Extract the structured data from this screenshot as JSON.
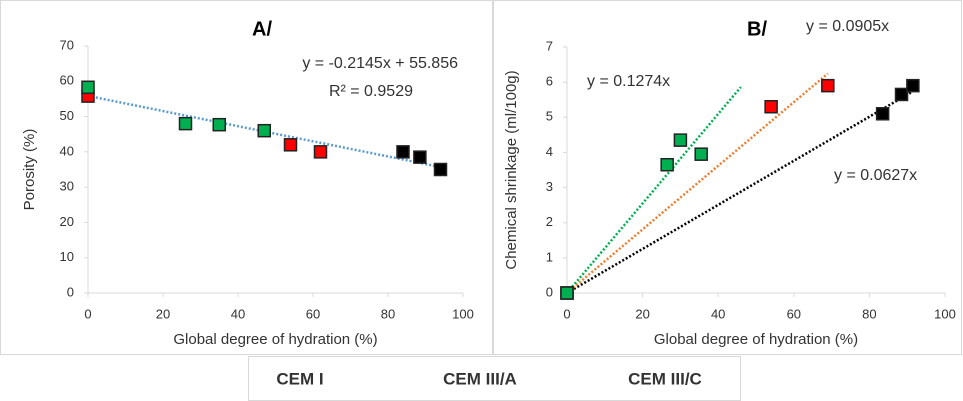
{
  "chart_data": [
    {
      "type": "scatter",
      "title": "A/",
      "x_label": "Global degree of hydration (%)",
      "y_label": "Porosity (%)",
      "xlim": [
        0,
        100
      ],
      "xticks": [
        0,
        20,
        40,
        60,
        80,
        100
      ],
      "ylim": [
        0,
        70
      ],
      "yticks": [
        0,
        10,
        20,
        30,
        40,
        50,
        60,
        70
      ],
      "grid": false,
      "series": [
        {
          "name": "CEM I",
          "color": "#000000",
          "x": [
            84,
            88.5,
            94
          ],
          "values": [
            40,
            38.5,
            35
          ]
        },
        {
          "name": "CEM III/A",
          "color": "#ff0000",
          "x": [
            0,
            54,
            62
          ],
          "values": [
            55.8,
            42,
            40
          ]
        },
        {
          "name": "CEM III/C",
          "color": "#00b050",
          "x": [
            0,
            26,
            35,
            47
          ],
          "values": [
            58.3,
            48,
            47.7,
            46
          ]
        }
      ],
      "trendlines": [
        {
          "color": "#5b9bd5",
          "slope": -0.2145,
          "intercept": 55.856,
          "x_range": [
            0,
            94
          ]
        }
      ],
      "annotations": [
        {
          "text": "y = -0.2145x + 55.856",
          "color": "#000000"
        },
        {
          "text": "R² = 0.9529",
          "color": "#000000"
        }
      ]
    },
    {
      "type": "scatter",
      "title": "B/",
      "x_label": "Global degree of hydration (%)",
      "y_label": "Chemical shrinkage (ml/100g)",
      "xlim": [
        0,
        100
      ],
      "xticks": [
        0,
        20,
        40,
        60,
        80,
        100
      ],
      "ylim": [
        0,
        7
      ],
      "yticks": [
        0,
        1,
        2,
        3,
        4,
        5,
        6,
        7
      ],
      "grid": false,
      "series": [
        {
          "color": "#000000",
          "x": [
            0,
            83.5,
            88.5,
            91.5
          ],
          "values": [
            0,
            5.1,
            5.65,
            5.9
          ]
        },
        {
          "color": "#ff0000",
          "x": [
            0,
            54,
            69
          ],
          "values": [
            0,
            5.3,
            5.9
          ]
        },
        {
          "color": "#00b050",
          "x": [
            0,
            26.5,
            30,
            35.5
          ],
          "values": [
            0,
            3.65,
            4.35,
            3.95
          ]
        }
      ],
      "trendlines": [
        {
          "color": "#000000",
          "slope": 0.0627,
          "intercept": 0,
          "x_range": [
            0,
            91
          ]
        },
        {
          "color": "#ed7d31",
          "slope": 0.0905,
          "intercept": 0,
          "x_range": [
            0,
            69
          ]
        },
        {
          "color": "#00b050",
          "slope": 0.1274,
          "intercept": 0,
          "x_range": [
            0,
            46
          ]
        }
      ],
      "annotations": [
        {
          "text": "y = 0.1274x",
          "color": "#00b050"
        },
        {
          "text": "y = 0.0905x",
          "color": "#ff0000"
        },
        {
          "text": "y = 0.0627x",
          "color": "#000000"
        }
      ]
    }
  ]
}
